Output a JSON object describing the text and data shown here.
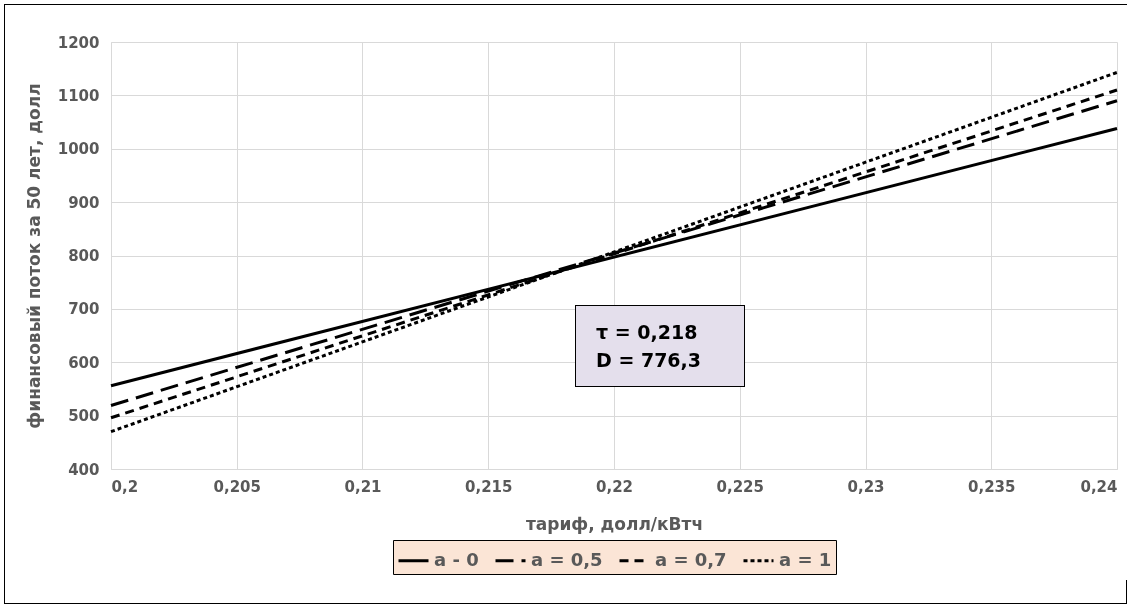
{
  "chart_data": {
    "type": "line",
    "xlabel": "тариф, долл/кВтч",
    "ylabel": "финансовый поток за 50 лет, долл",
    "x": [
      0.2,
      0.24
    ],
    "series": [
      {
        "name": "a - 0",
        "color": "#000000",
        "line_style": "solid",
        "values": [
          556,
          1038
        ]
      },
      {
        "name": "a = 0,5",
        "color": "#000000",
        "line_style": "dashed",
        "values": [
          519,
          1090
        ]
      },
      {
        "name": "a = 0,7",
        "color": "#000000",
        "line_style": "dashed",
        "values": [
          496,
          1110
        ]
      },
      {
        "name": "a = 1",
        "color": "#000000",
        "line_style": "dotted",
        "values": [
          470,
          1143
        ]
      }
    ],
    "xlim": [
      0.2,
      0.24
    ],
    "xticks": [
      {
        "value": 0.2,
        "label": "0,2"
      },
      {
        "value": 0.205,
        "label": "0,205"
      },
      {
        "value": 0.21,
        "label": "0,21"
      },
      {
        "value": 0.215,
        "label": "0,215"
      },
      {
        "value": 0.22,
        "label": "0,22"
      },
      {
        "value": 0.225,
        "label": "0,225"
      },
      {
        "value": 0.23,
        "label": "0,23"
      },
      {
        "value": 0.235,
        "label": "0,235"
      },
      {
        "value": 0.24,
        "label": "0,24"
      }
    ],
    "ylim": [
      400,
      1200
    ],
    "yticks": [
      400,
      500,
      600,
      700,
      800,
      900,
      1000,
      1100,
      1200
    ],
    "grid": true,
    "legend": "bottom",
    "marker": "none",
    "annotations": [
      "τ = 0,218",
      "D = 776,3"
    ]
  }
}
